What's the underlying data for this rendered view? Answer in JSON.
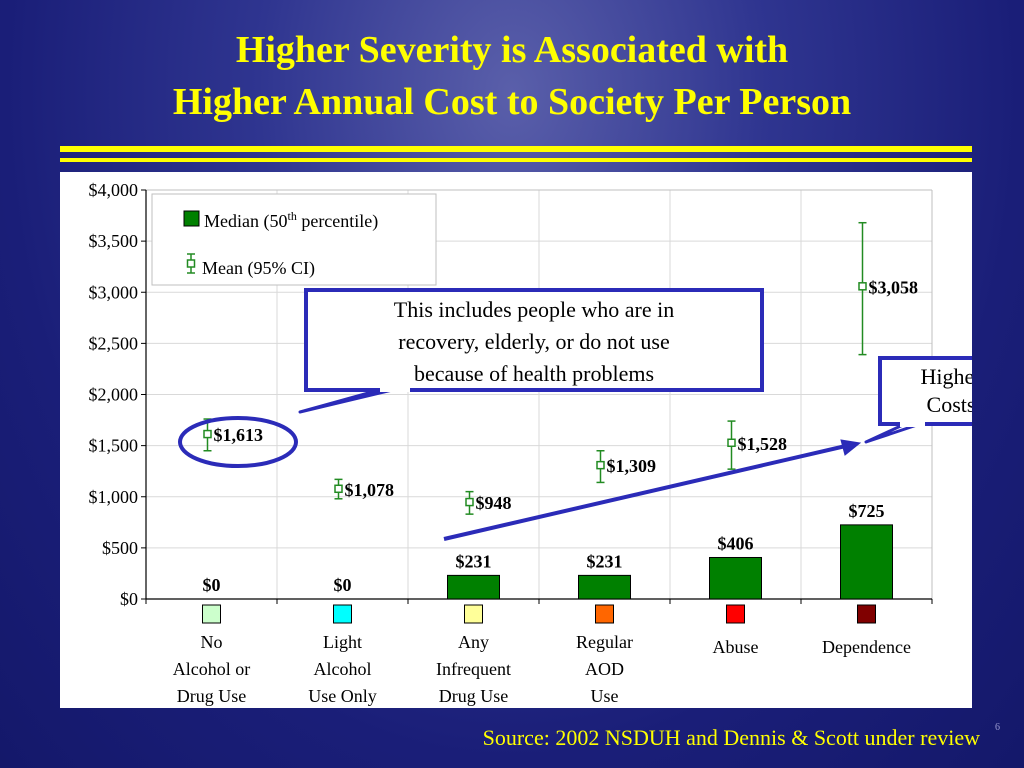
{
  "title_lines": [
    "Higher Severity is Associated with",
    "Higher Annual Cost to Society Per Person"
  ],
  "source": "Source: 2002 NSDUH and Dennis & Scott under review",
  "page_number": "6",
  "colors": {
    "title": "#ffff00",
    "bar": "#008000",
    "mean_marker": "#228b22",
    "callout_border": "#2b2bb8",
    "category_swatches": [
      "#ccffcc",
      "#00ffff",
      "#ffff99",
      "#ff6600",
      "#ff0000",
      "#800000"
    ]
  },
  "legend": {
    "median_prefix": "Median (50",
    "median_sup": "th",
    "median_suffix": " percentile)",
    "mean": "Mean (95% CI)"
  },
  "callouts": {
    "note_lines": [
      "This includes  people who are in",
      "recovery, elderly, or do not use",
      "because of health problems"
    ],
    "higher_lines": [
      "Higher",
      "Costs"
    ]
  },
  "chart_data": {
    "type": "bar",
    "ylim": [
      0,
      4000
    ],
    "yticks": [
      0,
      500,
      1000,
      1500,
      2000,
      2500,
      3000,
      3500,
      4000
    ],
    "ytick_labels": [
      "$0",
      "$500",
      "$1,000",
      "$1,500",
      "$2,000",
      "$2,500",
      "$3,000",
      "$3,500",
      "$4,000"
    ],
    "grid": true,
    "legend_position": "top-left",
    "categories": [
      [
        "No",
        "Alcohol or",
        "Drug Use"
      ],
      [
        "Light",
        "Alcohol",
        "Use Only"
      ],
      [
        "Any",
        "Infrequent",
        "Drug Use"
      ],
      [
        "Regular",
        "AOD",
        "Use"
      ],
      [
        "Abuse"
      ],
      [
        "Dependence"
      ]
    ],
    "series": [
      {
        "name": "Median (50th percentile)",
        "kind": "bar",
        "values": [
          0,
          0,
          231,
          231,
          406,
          725
        ],
        "labels": [
          "$0",
          "$0",
          "$231",
          "$231",
          "$406",
          "$725"
        ]
      },
      {
        "name": "Mean (95% CI)",
        "kind": "mean-ci",
        "values": [
          1613,
          1078,
          948,
          1309,
          1528,
          3058
        ],
        "ci_low": [
          1450,
          980,
          830,
          1140,
          1270,
          2390
        ],
        "ci_high": [
          1760,
          1170,
          1050,
          1450,
          1740,
          3680
        ],
        "labels": [
          "$1,613",
          "$1,078",
          "$948",
          "$1,309",
          "$1,528",
          "$3,058"
        ]
      }
    ]
  }
}
